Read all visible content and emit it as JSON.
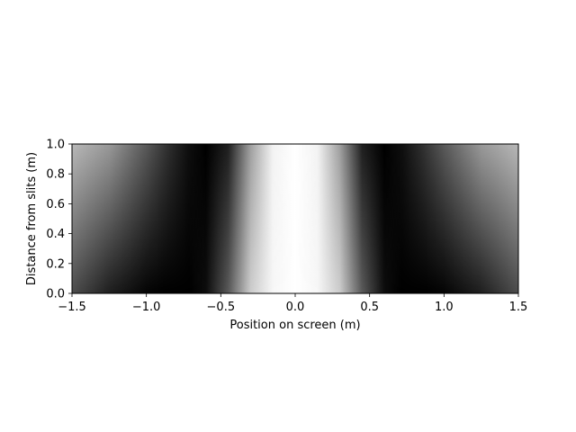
{
  "chart_data": {
    "type": "heatmap",
    "title": "",
    "xlabel": "Position on screen (m)",
    "ylabel": "Distance from slits (m)",
    "xlim": [
      -1.5,
      1.5
    ],
    "ylim": [
      0.0,
      1.0
    ],
    "xticks": [
      -1.5,
      -1.0,
      -0.5,
      0.0,
      0.5,
      1.0,
      1.5
    ],
    "xtick_labels": [
      "−1.5",
      "−1.0",
      "−0.5",
      "0.0",
      "0.5",
      "1.0",
      "1.5"
    ],
    "yticks": [
      0.0,
      0.2,
      0.4,
      0.6,
      0.8,
      1.0
    ],
    "ytick_labels": [
      "0.0",
      "0.2",
      "0.4",
      "0.6",
      "0.8",
      "1.0"
    ],
    "colormap": "gray",
    "grid": false,
    "intensity_profile": {
      "description_of_values": "relative brightness (0 = black, 1 = white) vs x at the two y extremes",
      "x": [
        -1.5,
        -1.25,
        -1.0,
        -0.85,
        -0.72,
        -0.6,
        -0.45,
        -0.3,
        -0.15,
        0.0,
        0.15,
        0.3,
        0.45,
        0.6,
        0.72,
        0.85,
        1.0,
        1.25,
        1.5
      ],
      "at_y_0": [
        0.3,
        0.12,
        0.02,
        0.0,
        0.0,
        0.05,
        0.35,
        0.8,
        0.97,
        1.0,
        0.97,
        0.8,
        0.35,
        0.05,
        0.0,
        0.0,
        0.02,
        0.12,
        0.3
      ],
      "at_y_1": [
        0.72,
        0.6,
        0.35,
        0.18,
        0.06,
        0.0,
        0.12,
        0.62,
        0.95,
        1.0,
        0.95,
        0.62,
        0.12,
        0.0,
        0.06,
        0.18,
        0.35,
        0.6,
        0.72
      ]
    }
  }
}
